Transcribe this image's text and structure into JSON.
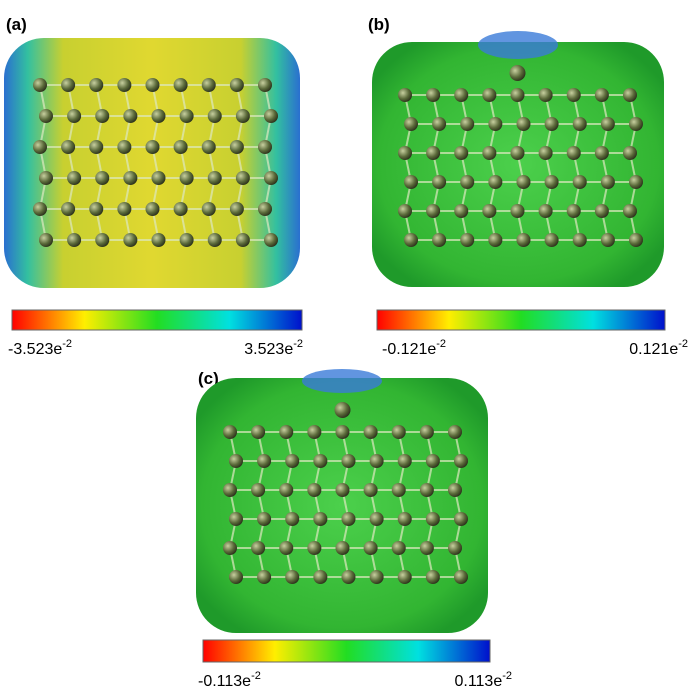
{
  "panels": [
    {
      "label": "(a)",
      "min": {
        "mantissa": "-3.523e",
        "exponent": "-2"
      },
      "max": {
        "mantissa": "3.523e",
        "exponent": "-2"
      }
    },
    {
      "label": "(b)",
      "min": {
        "mantissa": "-0.121e",
        "exponent": "-2"
      },
      "max": {
        "mantissa": "0.121e",
        "exponent": "-2"
      }
    },
    {
      "label": "(c)",
      "min": {
        "mantissa": "-0.113e",
        "exponent": "-2"
      },
      "max": {
        "mantissa": "0.113e",
        "exponent": "-2"
      }
    }
  ]
}
